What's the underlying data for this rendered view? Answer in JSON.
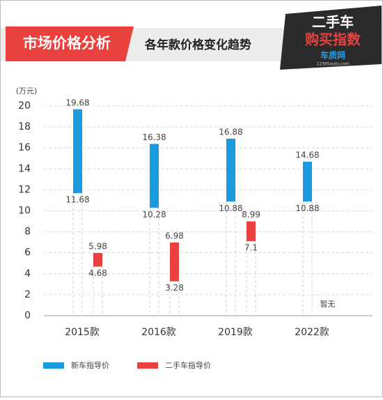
{
  "chart_data": {
    "type": "range-bar",
    "title": "市场价格分析",
    "subtitle": "各年款价格变化趋势",
    "logo": {
      "line1": "二手车",
      "line2": "购买指数",
      "brand": "车质网",
      "site": "12365auto.com"
    },
    "y_label": "(万元)",
    "categories": [
      "2015款",
      "2016款",
      "2019款",
      "2022款"
    ],
    "series": [
      {
        "name": "新车指导价",
        "color": "#1a9be0",
        "low": [
          11.68,
          10.28,
          10.88,
          10.88
        ],
        "high": [
          19.68,
          16.38,
          16.88,
          14.68
        ]
      },
      {
        "name": "二手车指导价",
        "color": "#e8413e",
        "low": [
          4.68,
          3.28,
          7.1,
          null
        ],
        "high": [
          5.98,
          6.98,
          8.99,
          null
        ],
        "missing_labels": [
          null,
          null,
          null,
          "暂无"
        ]
      }
    ],
    "ylim": [
      0,
      20
    ],
    "yticks": [
      0,
      2,
      4,
      6,
      8,
      10,
      12,
      14,
      16,
      18,
      20
    ],
    "grid": true
  }
}
